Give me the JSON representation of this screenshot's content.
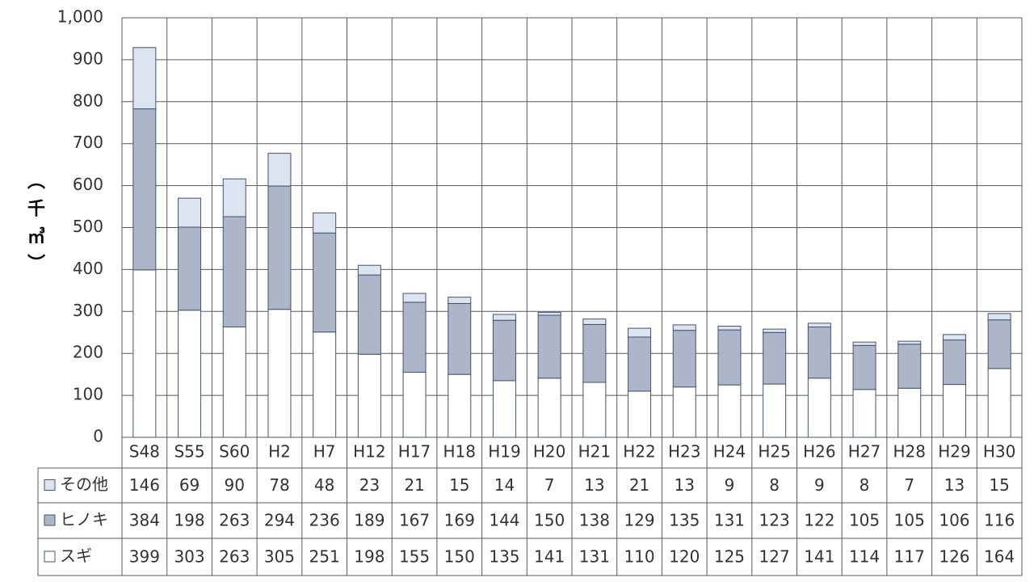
{
  "chart_data": {
    "type": "stacked_bar",
    "y_label": "（千㎥）",
    "categories": [
      "S48",
      "S55",
      "S60",
      "H2",
      "H7",
      "H12",
      "H17",
      "H18",
      "H19",
      "H20",
      "H21",
      "H22",
      "H23",
      "H24",
      "H25",
      "H26",
      "H27",
      "H28",
      "H29",
      "H30"
    ],
    "series": [
      {
        "name": "その他",
        "color": "#dce3f1",
        "values": [
          146,
          69,
          90,
          78,
          48,
          23,
          21,
          15,
          14,
          7,
          13,
          21,
          13,
          9,
          8,
          9,
          8,
          7,
          13,
          15
        ]
      },
      {
        "name": "ヒノキ",
        "color": "#adb5c8",
        "values": [
          384,
          198,
          263,
          294,
          236,
          189,
          167,
          169,
          144,
          150,
          138,
          129,
          135,
          131,
          123,
          122,
          105,
          105,
          106,
          116
        ]
      },
      {
        "name": "スギ",
        "color": "#ffffff",
        "values": [
          399,
          303,
          263,
          305,
          251,
          198,
          155,
          150,
          135,
          141,
          131,
          110,
          120,
          125,
          127,
          141,
          114,
          117,
          126,
          164
        ]
      }
    ],
    "ylim": [
      0,
      1000
    ],
    "yticks": [
      0,
      100,
      200,
      300,
      400,
      500,
      600,
      700,
      800,
      900,
      {
        "value": 1000,
        "label": "1,000"
      }
    ],
    "grid": true
  }
}
